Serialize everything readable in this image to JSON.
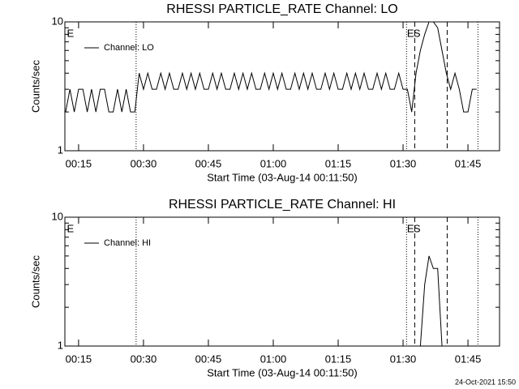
{
  "chart_data": [
    {
      "type": "line",
      "title": "RHESSI PARTICLE_RATE Channel: LO",
      "xlabel": "Start Time (03-Aug-14 00:11:50)",
      "ylabel": "Counts/sec",
      "log_y": true,
      "legend": "upper left",
      "xlim": [
        11.83,
        112.3
      ],
      "xticks": [
        {
          "value": 15,
          "label": "00:15"
        },
        {
          "value": 30,
          "label": "00:30"
        },
        {
          "value": 45,
          "label": "00:45"
        },
        {
          "value": 60,
          "label": "01:00"
        },
        {
          "value": 75,
          "label": "01:15"
        },
        {
          "value": 90,
          "label": "01:30"
        },
        {
          "value": 105,
          "label": "01:45"
        }
      ],
      "ylim": [
        1,
        10
      ],
      "yticks": [
        1,
        10
      ],
      "yminorticks": [
        2,
        3,
        4,
        5,
        6,
        7,
        8,
        9
      ],
      "markers": [
        {
          "x": 28.3,
          "style": "dotted"
        },
        {
          "x": 90.8,
          "style": "dotted"
        },
        {
          "x": 92.7,
          "style": "dashed"
        },
        {
          "x": 100.2,
          "style": "dashed"
        },
        {
          "x": 107.3,
          "style": "dotted"
        }
      ],
      "annotations": [
        {
          "text": "E",
          "x": 12.3
        },
        {
          "text": "E",
          "x": 90.9
        },
        {
          "text": "S",
          "x": 92.4
        }
      ],
      "x": [
        12,
        13,
        14,
        15,
        16,
        17,
        18,
        19,
        20,
        21,
        22,
        23,
        24,
        25,
        26,
        27,
        28,
        29,
        30,
        31,
        32,
        33,
        34,
        35,
        36,
        37,
        38,
        39,
        40,
        41,
        42,
        43,
        44,
        45,
        46,
        47,
        48,
        49,
        50,
        51,
        52,
        53,
        54,
        55,
        56,
        57,
        58,
        59,
        60,
        61,
        62,
        63,
        64,
        65,
        66,
        67,
        68,
        69,
        70,
        71,
        72,
        73,
        74,
        75,
        76,
        77,
        78,
        79,
        80,
        81,
        82,
        83,
        84,
        85,
        86,
        87,
        88,
        89,
        90,
        91,
        92,
        93,
        94,
        95,
        96,
        97,
        98,
        99,
        100,
        101,
        102,
        103,
        104,
        105,
        106,
        107
      ],
      "series": [
        {
          "name": "Channel: LO",
          "color": "#000000",
          "values": [
            2,
            3,
            2,
            3,
            3,
            2,
            3,
            2,
            3,
            3,
            2,
            2,
            3,
            2,
            3,
            2,
            2,
            4,
            3,
            4,
            3,
            3,
            4,
            3,
            4,
            3,
            3,
            4,
            3,
            4,
            3,
            4,
            3,
            3,
            4,
            3,
            4,
            3,
            3,
            4,
            3,
            4,
            3,
            4,
            3,
            3,
            4,
            3,
            4,
            3,
            4,
            3,
            3,
            4,
            3,
            4,
            3,
            4,
            3,
            3,
            4,
            3,
            4,
            3,
            3,
            4,
            3,
            4,
            3,
            4,
            3,
            3,
            4,
            3,
            4,
            3,
            3,
            4,
            3,
            3,
            2,
            4,
            6,
            8,
            10,
            10,
            9,
            6,
            4,
            3,
            4,
            3,
            2,
            2,
            3,
            3
          ]
        }
      ]
    },
    {
      "type": "line",
      "title": "RHESSI PARTICLE_RATE Channel: HI",
      "xlabel": "Start Time (03-Aug-14 00:11:50)",
      "ylabel": "Counts/sec",
      "log_y": true,
      "legend": "upper left",
      "xlim": [
        11.83,
        112.3
      ],
      "xticks": [
        {
          "value": 15,
          "label": "00:15"
        },
        {
          "value": 30,
          "label": "00:30"
        },
        {
          "value": 45,
          "label": "00:45"
        },
        {
          "value": 60,
          "label": "01:00"
        },
        {
          "value": 75,
          "label": "01:15"
        },
        {
          "value": 90,
          "label": "01:30"
        },
        {
          "value": 105,
          "label": "01:45"
        }
      ],
      "ylim": [
        1,
        10
      ],
      "yticks": [
        1,
        10
      ],
      "yminorticks": [
        2,
        3,
        4,
        5,
        6,
        7,
        8,
        9
      ],
      "markers": [
        {
          "x": 28.3,
          "style": "dotted"
        },
        {
          "x": 90.8,
          "style": "dotted"
        },
        {
          "x": 92.7,
          "style": "dashed"
        },
        {
          "x": 100.2,
          "style": "dashed"
        },
        {
          "x": 107.3,
          "style": "dotted"
        }
      ],
      "annotations": [
        {
          "text": "E",
          "x": 12.3
        },
        {
          "text": "E",
          "x": 90.9
        },
        {
          "text": "S",
          "x": 92.4
        }
      ],
      "x": [
        12,
        13,
        14,
        15,
        16,
        17,
        18,
        19,
        20,
        21,
        22,
        23,
        24,
        25,
        26,
        27,
        28,
        29,
        30,
        31,
        32,
        33,
        34,
        35,
        36,
        37,
        38,
        39,
        40,
        41,
        42,
        43,
        44,
        45,
        46,
        47,
        48,
        49,
        50,
        51,
        52,
        53,
        54,
        55,
        56,
        57,
        58,
        59,
        60,
        61,
        62,
        63,
        64,
        65,
        66,
        67,
        68,
        69,
        70,
        71,
        72,
        73,
        74,
        75,
        76,
        77,
        78,
        79,
        80,
        81,
        82,
        83,
        84,
        85,
        86,
        87,
        88,
        89,
        90,
        91,
        92,
        93,
        94,
        95,
        96,
        97,
        98,
        99,
        100,
        101,
        102,
        103,
        104,
        105,
        106,
        107
      ],
      "series": [
        {
          "name": "Channel: HI",
          "color": "#000000",
          "values": [
            null,
            null,
            null,
            null,
            null,
            null,
            null,
            null,
            null,
            null,
            null,
            null,
            null,
            null,
            null,
            null,
            null,
            null,
            null,
            null,
            null,
            null,
            null,
            null,
            null,
            null,
            null,
            null,
            null,
            null,
            null,
            null,
            null,
            null,
            null,
            null,
            null,
            null,
            null,
            null,
            null,
            null,
            null,
            null,
            null,
            null,
            null,
            null,
            null,
            null,
            null,
            null,
            null,
            null,
            null,
            null,
            null,
            null,
            null,
            null,
            null,
            null,
            null,
            null,
            null,
            null,
            null,
            null,
            null,
            null,
            null,
            null,
            null,
            null,
            null,
            null,
            null,
            null,
            null,
            null,
            null,
            null,
            1,
            3,
            5,
            4,
            4,
            1,
            null,
            null,
            null,
            null,
            null,
            null,
            null,
            null
          ]
        }
      ]
    }
  ],
  "footer": "24-Oct-2021 15:50"
}
